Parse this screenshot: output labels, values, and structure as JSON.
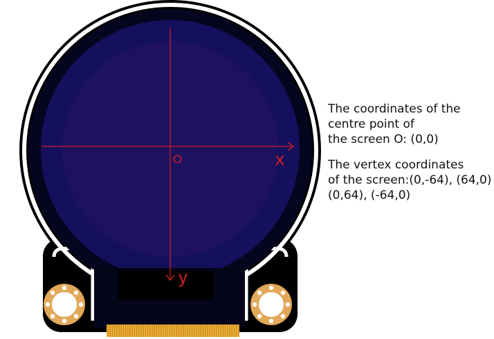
{
  "diagram": {
    "origin_label": "O",
    "x_axis_label": "x",
    "y_axis_label": "y",
    "axis_color": "#d42020",
    "board_color": "#000000",
    "outline_color": "#ffffff",
    "screen_color": "#15105e",
    "screen_inner_color": "#1d1160",
    "pad_color": "#e2a85a",
    "connector_color": "#f2b53a"
  },
  "captions": {
    "centre": {
      "line1": "The coordinates of the",
      "line2": "centre point of",
      "line3": "the screen O: (0,0)"
    },
    "vertex": {
      "line1": "The vertex coordinates",
      "line2": "of the screen:(0,-64), (64,0)",
      "line3": "(0,64), (-64,0)"
    }
  }
}
